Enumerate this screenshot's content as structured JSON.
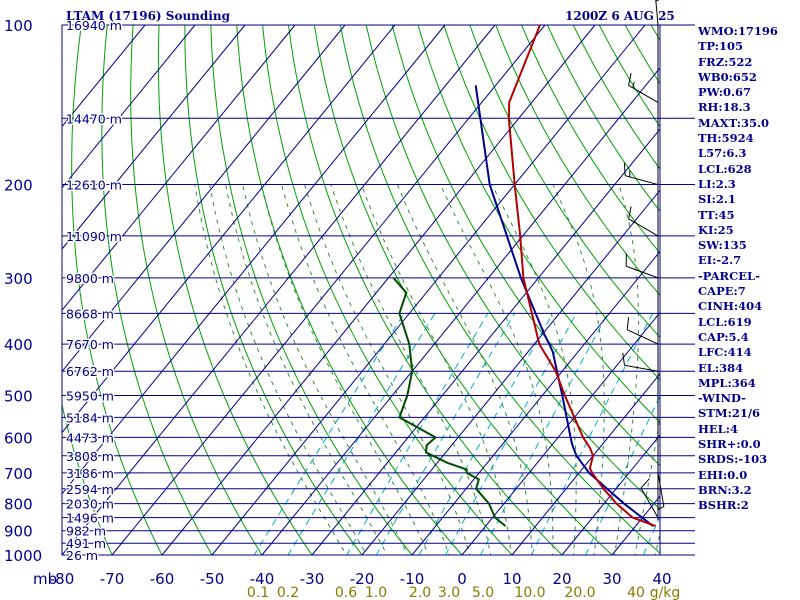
{
  "header": {
    "station": "LTAM (17196) Sounding",
    "datetime": "1200Z  6 AUG 25"
  },
  "indices": [
    "WMO:17196",
    "TP:105",
    "FRZ:522",
    "WB0:652",
    "PW:0.67",
    "RH:18.3",
    "MAXT:35.0",
    "TH:5924",
    "L57:6.3",
    "LCL:628",
    "LI:2.3",
    "SI:2.1",
    "TT:45",
    "KI:25",
    "SW:135",
    "EI:-2.7",
    "-PARCEL-",
    "CAPE:7",
    "CINH:404",
    "LCL:619",
    "CAP:5.4",
    "LFC:414",
    "EL:384",
    "MPL:364",
    "-WIND-",
    "STM:21/6",
    "HEL:4",
    "SHR+:0.0",
    "SRDS:-103",
    "EHI:0.0",
    "BRN:3.2",
    "BSHR:2"
  ],
  "colors": {
    "grid": "#00008b",
    "temperature": "#b30000",
    "dewpoint": "#004d00",
    "parcel": "#00008b",
    "dry_adiabat": "#00a000",
    "moist_adiabat": "#3a8a3a",
    "mixing_ratio": "#00b0c8",
    "axis_text": "#00008b",
    "mixing_ratio_text": "#8a7a00",
    "wind": "#000000"
  },
  "chart_data": {
    "type": "skew-t log-p sounding",
    "p_range": [
      1000,
      100
    ],
    "t_range_at_surface": [
      -80,
      40
    ],
    "pressure_ticks": [
      100,
      200,
      300,
      400,
      500,
      600,
      700,
      800,
      900,
      1000
    ],
    "temperature_ticks": [
      -80,
      -70,
      -60,
      -50,
      -40,
      -30,
      -20,
      -10,
      0,
      10,
      20,
      30,
      40
    ],
    "pressure_axis_unit": "mb",
    "height_labels": [
      {
        "p": 100,
        "label": "16940 m"
      },
      {
        "p": 150,
        "label": "14470 m"
      },
      {
        "p": 200,
        "label": "12610 m"
      },
      {
        "p": 250,
        "label": "11090 m"
      },
      {
        "p": 300,
        "label": "9800 m"
      },
      {
        "p": 350,
        "label": "8668 m"
      },
      {
        "p": 400,
        "label": "7670 m"
      },
      {
        "p": 450,
        "label": "6762 m"
      },
      {
        "p": 500,
        "label": "5950 m"
      },
      {
        "p": 550,
        "label": "5184 m"
      },
      {
        "p": 600,
        "label": "4473 m"
      },
      {
        "p": 650,
        "label": "3808 m"
      },
      {
        "p": 700,
        "label": "3186 m"
      },
      {
        "p": 750,
        "label": "2594 m"
      },
      {
        "p": 800,
        "label": "2030 m"
      },
      {
        "p": 850,
        "label": "1496 m"
      },
      {
        "p": 900,
        "label": "982 m"
      },
      {
        "p": 950,
        "label": "491 m"
      },
      {
        "p": 1000,
        "label": "26 m"
      }
    ],
    "mixing_ratio_labels": [
      "0.1",
      "0.2",
      "0.6",
      "1.0",
      "2.0",
      "3.0",
      "5.0",
      "10.0",
      "20.0",
      "40"
    ],
    "mixing_ratio_unit": "g/kg",
    "mixing_ratio_values": [
      0.1,
      0.2,
      0.6,
      1.0,
      2.0,
      3.0,
      5.0,
      10.0,
      20.0,
      40
    ],
    "temperature_profile": [
      {
        "p": 882,
        "t": 34.0
      },
      {
        "p": 850,
        "t": 28.0
      },
      {
        "p": 800,
        "t": 22.5
      },
      {
        "p": 750,
        "t": 17.5
      },
      {
        "p": 700,
        "t": 12.6
      },
      {
        "p": 686,
        "t": 11.4
      },
      {
        "p": 650,
        "t": 10.0
      },
      {
        "p": 629,
        "t": 8.2
      },
      {
        "p": 600,
        "t": 5.0
      },
      {
        "p": 500,
        "t": -5.5
      },
      {
        "p": 450,
        "t": -11.3
      },
      {
        "p": 400,
        "t": -19.0
      },
      {
        "p": 300,
        "t": -33.0
      },
      {
        "p": 250,
        "t": -40.5
      },
      {
        "p": 200,
        "t": -50.0
      },
      {
        "p": 150,
        "t": -62.0
      },
      {
        "p": 140,
        "t": -64.5
      },
      {
        "p": 100,
        "t": -71.0
      }
    ],
    "dewpoint_profile": [
      {
        "p": 882,
        "t": 4.0
      },
      {
        "p": 850,
        "t": 0.5
      },
      {
        "p": 800,
        "t": -3.0
      },
      {
        "p": 750,
        "t": -8.0
      },
      {
        "p": 720,
        "t": -9.0
      },
      {
        "p": 700,
        "t": -12.5
      },
      {
        "p": 690,
        "t": -13.0
      },
      {
        "p": 670,
        "t": -18.0
      },
      {
        "p": 640,
        "t": -24.0
      },
      {
        "p": 620,
        "t": -25.0
      },
      {
        "p": 600,
        "t": -24.5
      },
      {
        "p": 550,
        "t": -35.0
      },
      {
        "p": 500,
        "t": -37.0
      },
      {
        "p": 450,
        "t": -40.0
      },
      {
        "p": 400,
        "t": -45.0
      },
      {
        "p": 350,
        "t": -52.0
      },
      {
        "p": 320,
        "t": -54.0
      },
      {
        "p": 300,
        "t": -59.0
      }
    ],
    "parcel_profile": [
      {
        "p": 882,
        "t": 33.5
      },
      {
        "p": 800,
        "t": 24.0
      },
      {
        "p": 700,
        "t": 12.0
      },
      {
        "p": 650,
        "t": 6.7
      },
      {
        "p": 619,
        "t": 4.0
      },
      {
        "p": 600,
        "t": 2.5
      },
      {
        "p": 500,
        "t": -6.0
      },
      {
        "p": 414,
        "t": -15.0
      },
      {
        "p": 400,
        "t": -17.0
      },
      {
        "p": 384,
        "t": -19.5
      },
      {
        "p": 300,
        "t": -33.5
      },
      {
        "p": 200,
        "t": -55.0
      },
      {
        "p": 130,
        "t": -74.0
      }
    ],
    "wind_barbs": [
      {
        "p": 100,
        "dir": 355,
        "kt": 25
      },
      {
        "p": 140,
        "dir": 300,
        "kt": 15
      },
      {
        "p": 200,
        "dir": 285,
        "kt": 15
      },
      {
        "p": 250,
        "dir": 300,
        "kt": 10
      },
      {
        "p": 300,
        "dir": 290,
        "kt": 10
      },
      {
        "p": 400,
        "dir": 295,
        "kt": 10
      },
      {
        "p": 450,
        "dir": 280,
        "kt": 10
      },
      {
        "p": 700,
        "dir": 170,
        "kt": 5
      },
      {
        "p": 850,
        "dir": 330,
        "kt": 10
      }
    ]
  }
}
